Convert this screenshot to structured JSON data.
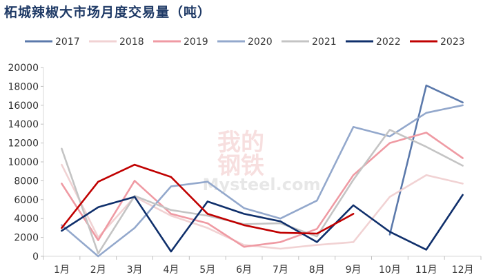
{
  "chart_data": {
    "type": "line",
    "title": "柘城辣椒大市场月度交易量（吨）",
    "categories": [
      "1月",
      "2月",
      "3月",
      "4月",
      "5月",
      "6月",
      "7月",
      "8月",
      "9月",
      "10月",
      "11月",
      "12月"
    ],
    "ylim": [
      0,
      20000
    ],
    "yticks": [
      0,
      2000,
      4000,
      6000,
      8000,
      10000,
      12000,
      14000,
      16000,
      18000,
      20000
    ],
    "legend_position": "top",
    "grid": false,
    "series": [
      {
        "name": "2017",
        "color": "#5b79ab",
        "values": [
          null,
          null,
          null,
          null,
          null,
          null,
          null,
          null,
          null,
          2300,
          18100,
          16300
        ]
      },
      {
        "name": "2018",
        "color": "#f1d2d3",
        "values": [
          9700,
          2000,
          6300,
          4300,
          3000,
          1200,
          800,
          1200,
          1500,
          6300,
          8600,
          7700
        ]
      },
      {
        "name": "2019",
        "color": "#ef9aa3",
        "values": [
          7700,
          1700,
          8000,
          4500,
          3500,
          1000,
          1500,
          2900,
          8600,
          12000,
          13100,
          10400
        ]
      },
      {
        "name": "2020",
        "color": "#93a8cc",
        "values": [
          3300,
          0,
          3000,
          7400,
          7900,
          5100,
          4000,
          5900,
          13700,
          12700,
          15200,
          16000
        ]
      },
      {
        "name": "2021",
        "color": "#c4c4c4",
        "values": [
          11400,
          300,
          6400,
          4900,
          4300,
          3400,
          3500,
          2100,
          8100,
          13400,
          11600,
          9600
        ]
      },
      {
        "name": "2022",
        "color": "#0f2f6b",
        "values": [
          2700,
          5200,
          6300,
          500,
          5800,
          4500,
          3700,
          1500,
          5400,
          2600,
          700,
          6500
        ]
      },
      {
        "name": "2023",
        "color": "#c00000",
        "values": [
          3000,
          7900,
          9700,
          8400,
          4500,
          3300,
          2500,
          2400,
          4500,
          null,
          null,
          null
        ]
      }
    ]
  },
  "watermark": {
    "line1": "我的",
    "line2": "钢铁",
    "line3": "Mysteel.com"
  }
}
